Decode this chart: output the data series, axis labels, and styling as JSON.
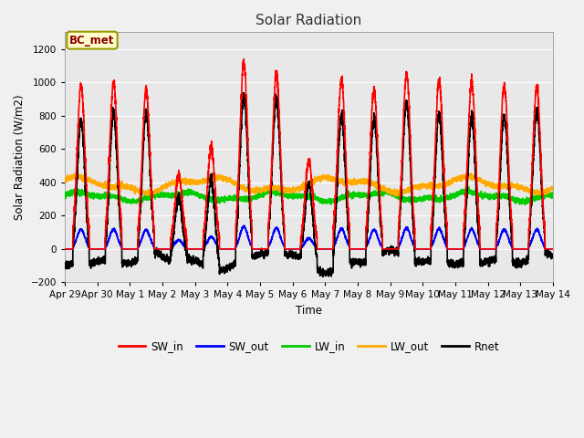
{
  "title": "Solar Radiation",
  "ylabel": "Solar Radiation (W/m2)",
  "xlabel": "Time",
  "ylim": [
    -200,
    1300
  ],
  "yticks": [
    -200,
    0,
    200,
    400,
    600,
    800,
    1000,
    1200
  ],
  "annotation": "BC_met",
  "days": [
    "Apr 29",
    "Apr 30",
    "May 1",
    "May 2",
    "May 3",
    "May 4",
    "May 5",
    "May 6",
    "May 7",
    "May 8",
    "May 9",
    "May 10",
    "May 11",
    "May 12",
    "May 13",
    "May 14"
  ],
  "series": {
    "SW_in": {
      "color": "#ff0000",
      "lw": 1.2
    },
    "SW_out": {
      "color": "#0000ff",
      "lw": 1.2
    },
    "LW_in": {
      "color": "#00cc00",
      "lw": 1.2
    },
    "LW_out": {
      "color": "#ffaa00",
      "lw": 1.2
    },
    "Rnet": {
      "color": "#000000",
      "lw": 1.2
    }
  },
  "sw_in_peaks": [
    980,
    1000,
    950,
    440,
    600,
    1120,
    1050,
    530,
    1020,
    950,
    1050,
    1010,
    1000,
    980,
    970
  ],
  "plot_bg": "#e8e8e8",
  "fig_bg": "#f0f0f0",
  "grid_color": "#ffffff"
}
